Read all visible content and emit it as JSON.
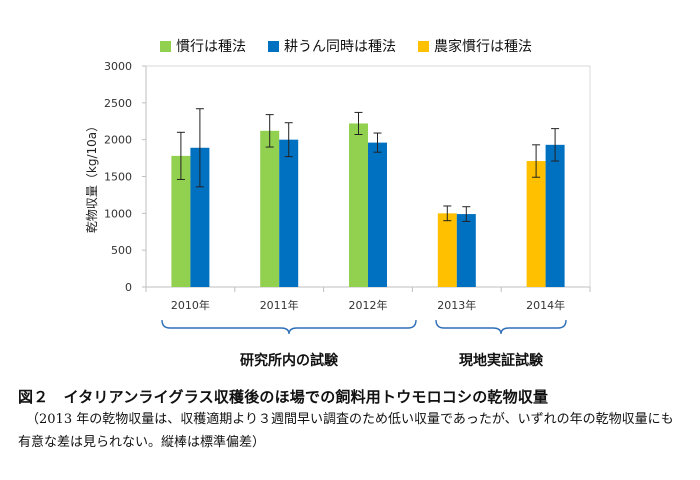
{
  "chart_data": {
    "type": "bar",
    "title": "",
    "xlabel": "",
    "ylabel": "乾物収量（kg/10a）",
    "ylim": [
      0,
      3000
    ],
    "yticks": [
      0,
      500,
      1000,
      1500,
      2000,
      2500,
      3000
    ],
    "grid": false,
    "legend_position": "top",
    "categories": [
      "2010年",
      "2011年",
      "2012年",
      "2013年",
      "2014年"
    ],
    "series": [
      {
        "name": "慣行は種法",
        "color": "#92D050",
        "values": [
          1780,
          2120,
          2220,
          null,
          null
        ],
        "errors": [
          320,
          220,
          150,
          null,
          null
        ]
      },
      {
        "name": "耕うん同時は種法",
        "color": "#0070C0",
        "values": [
          1890,
          2000,
          1960,
          990,
          1930
        ],
        "errors": [
          530,
          230,
          130,
          100,
          220
        ]
      },
      {
        "name": "農家慣行は種法",
        "color": "#FFC000",
        "values": [
          null,
          null,
          null,
          1000,
          1710
        ],
        "errors": [
          null,
          null,
          null,
          100,
          220
        ]
      }
    ],
    "bars": [
      {
        "category": "2010年",
        "series": 0,
        "slot": 0
      },
      {
        "category": "2010年",
        "series": 1,
        "slot": 1
      },
      {
        "category": "2011年",
        "series": 0,
        "slot": 0
      },
      {
        "category": "2011年",
        "series": 1,
        "slot": 1
      },
      {
        "category": "2012年",
        "series": 0,
        "slot": 0
      },
      {
        "category": "2012年",
        "series": 1,
        "slot": 1
      },
      {
        "category": "2013年",
        "series": 2,
        "slot": 0
      },
      {
        "category": "2013年",
        "series": 1,
        "slot": 1
      },
      {
        "category": "2014年",
        "series": 2,
        "slot": 0
      },
      {
        "category": "2014年",
        "series": 1,
        "slot": 1
      }
    ],
    "groups": [
      {
        "label": "研究所内の試験",
        "categories": [
          "2010年",
          "2011年",
          "2012年"
        ]
      },
      {
        "label": "現地実証試験",
        "categories": [
          "2013年",
          "2014年"
        ]
      }
    ]
  },
  "caption": {
    "title": "図２　イタリアンライグラス収穫後のほ場での飼料用トウモロコシの乾物収量",
    "note": "（2013 年の乾物収量は、収穫適期より３週間早い調査のため低い収量であったが、いずれの年の乾物収量にも有意な差は見られない。縦棒は標準偏差）"
  }
}
